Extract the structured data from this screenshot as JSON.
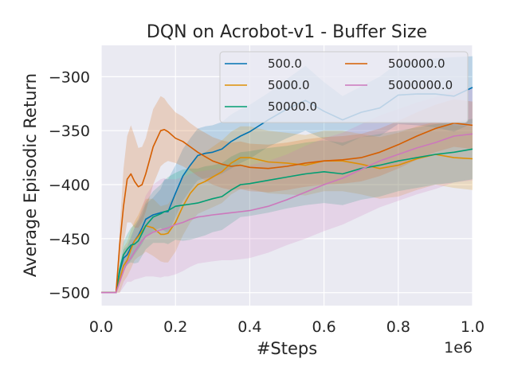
{
  "chart_data": {
    "type": "line",
    "title": "DQN on Acrobot-v1 - Buffer Size",
    "xlabel": "#Steps",
    "ylabel": "Average Episodic Return",
    "x_scale_label": "1e6",
    "xlim": [
      0,
      1000000
    ],
    "ylim": [
      -512,
      -271
    ],
    "x_ticks": [
      0,
      200000,
      400000,
      600000,
      800000,
      1000000
    ],
    "x_tick_labels": [
      "0.0",
      "0.2",
      "0.4",
      "0.6",
      "0.8",
      "1.0"
    ],
    "y_ticks": [
      -500,
      -450,
      -400,
      -350,
      -300
    ],
    "y_tick_labels": [
      "−500",
      "−450",
      "−400",
      "−350",
      "−300"
    ],
    "grid": true,
    "legend_location": "top-right",
    "legend_columns": 2,
    "x": [
      0,
      20000,
      40000,
      50000,
      60000,
      70000,
      80000,
      90000,
      100000,
      110000,
      120000,
      140000,
      160000,
      170000,
      180000,
      200000,
      220000,
      240000,
      260000,
      280000,
      300000,
      325000,
      350000,
      375000,
      400000,
      450000,
      500000,
      550000,
      600000,
      650000,
      700000,
      750000,
      800000,
      850000,
      900000,
      950000,
      1000000
    ],
    "series": [
      {
        "name": "500.0",
        "color": "#0173b2",
        "values": [
          -500,
          -500,
          -500,
          -480,
          -468,
          -465,
          -458,
          -452,
          -447,
          -440,
          -432,
          -428,
          -426,
          -425,
          -425,
          -408,
          -392,
          -382,
          -373,
          -371,
          -370,
          -367,
          -360,
          -355,
          -351,
          -340,
          -330,
          -322,
          -332,
          -340,
          -333,
          -329,
          -317,
          -316,
          -316,
          -318,
          -310
        ],
        "upper": [
          -500,
          -500,
          -500,
          -475,
          -460,
          -457,
          -448,
          -440,
          -434,
          -428,
          -418,
          -412,
          -404,
          -395,
          -395,
          -382,
          -367,
          -357,
          -348,
          -346,
          -345,
          -342,
          -335,
          -330,
          -326,
          -315,
          -302,
          -290,
          -305,
          -318,
          -309,
          -300,
          -287,
          -285,
          -283,
          -282,
          -281
        ],
        "lower": [
          -500,
          -500,
          -500,
          -488,
          -477,
          -475,
          -470,
          -465,
          -460,
          -455,
          -448,
          -443,
          -440,
          -443,
          -445,
          -430,
          -415,
          -405,
          -396,
          -394,
          -393,
          -390,
          -385,
          -380,
          -376,
          -365,
          -357,
          -350,
          -358,
          -364,
          -356,
          -355,
          -344,
          -345,
          -347,
          -351,
          -343
        ]
      },
      {
        "name": "5000.0",
        "color": "#de8f05",
        "values": [
          -500,
          -500,
          -500,
          -488,
          -475,
          -470,
          -460,
          -452,
          -448,
          -443,
          -438,
          -440,
          -446,
          -446,
          -445,
          -435,
          -420,
          -408,
          -400,
          -397,
          -393,
          -388,
          -380,
          -375,
          -375,
          -379,
          -380,
          -382,
          -378,
          -378,
          -381,
          -385,
          -382,
          -376,
          -372,
          -375,
          -376
        ],
        "upper": [
          -500,
          -500,
          -500,
          -475,
          -458,
          -453,
          -442,
          -434,
          -428,
          -420,
          -413,
          -413,
          -420,
          -419,
          -418,
          -408,
          -393,
          -381,
          -373,
          -370,
          -365,
          -359,
          -351,
          -346,
          -346,
          -350,
          -352,
          -354,
          -350,
          -350,
          -353,
          -356,
          -352,
          -346,
          -342,
          -345,
          -346
        ],
        "lower": [
          -500,
          -500,
          -500,
          -500,
          -490,
          -485,
          -478,
          -470,
          -467,
          -465,
          -462,
          -466,
          -471,
          -472,
          -472,
          -462,
          -447,
          -435,
          -427,
          -424,
          -421,
          -417,
          -409,
          -404,
          -404,
          -408,
          -409,
          -410,
          -406,
          -406,
          -409,
          -413,
          -411,
          -405,
          -400,
          -403,
          -405
        ]
      },
      {
        "name": "50000.0",
        "color": "#029e73",
        "values": [
          -500,
          -500,
          -500,
          -478,
          -465,
          -460,
          -456,
          -455,
          -452,
          -445,
          -438,
          -430,
          -427,
          -425,
          -424,
          -420,
          -419,
          -418,
          -417,
          -415,
          -413,
          -411,
          -405,
          -400,
          -399,
          -396,
          -393,
          -390,
          -388,
          -390,
          -385,
          -382,
          -378,
          -375,
          -372,
          -370,
          -367
        ],
        "upper": [
          -500,
          -500,
          -500,
          -470,
          -453,
          -446,
          -440,
          -437,
          -432,
          -424,
          -416,
          -406,
          -400,
          -396,
          -393,
          -389,
          -386,
          -385,
          -385,
          -383,
          -382,
          -380,
          -374,
          -370,
          -369,
          -366,
          -364,
          -361,
          -359,
          -361,
          -356,
          -353,
          -350,
          -347,
          -344,
          -342,
          -339
        ],
        "lower": [
          -500,
          -500,
          -500,
          -490,
          -478,
          -474,
          -472,
          -473,
          -472,
          -466,
          -460,
          -454,
          -454,
          -454,
          -455,
          -451,
          -452,
          -451,
          -449,
          -447,
          -444,
          -442,
          -436,
          -430,
          -429,
          -426,
          -422,
          -419,
          -417,
          -419,
          -414,
          -411,
          -406,
          -403,
          -400,
          -398,
          -395
        ]
      },
      {
        "name": "500000.0",
        "color": "#d55e00",
        "values": [
          -500,
          -500,
          -500,
          -455,
          -420,
          -395,
          -390,
          -397,
          -402,
          -400,
          -390,
          -365,
          -350,
          -349,
          -351,
          -357,
          -360,
          -365,
          -370,
          -374,
          -378,
          -381,
          -383,
          -382,
          -384,
          -385,
          -383,
          -380,
          -378,
          -377,
          -375,
          -370,
          -363,
          -355,
          -348,
          -343,
          -345
        ],
        "upper": [
          -500,
          -500,
          -500,
          -440,
          -385,
          -355,
          -345,
          -355,
          -366,
          -365,
          -357,
          -330,
          -318,
          -320,
          -325,
          -333,
          -337,
          -343,
          -348,
          -352,
          -356,
          -359,
          -361,
          -360,
          -362,
          -363,
          -361,
          -358,
          -356,
          -355,
          -353,
          -348,
          -341,
          -333,
          -326,
          -321,
          -323
        ],
        "lower": [
          -500,
          -500,
          -500,
          -470,
          -455,
          -435,
          -435,
          -440,
          -440,
          -435,
          -425,
          -400,
          -383,
          -380,
          -378,
          -380,
          -383,
          -387,
          -392,
          -396,
          -400,
          -403,
          -405,
          -404,
          -406,
          -407,
          -405,
          -402,
          -400,
          -399,
          -397,
          -392,
          -385,
          -377,
          -370,
          -365,
          -367
        ]
      },
      {
        "name": "5000000.0",
        "color": "#cc78bc",
        "values": [
          -500,
          -500,
          -500,
          -490,
          -480,
          -472,
          -468,
          -462,
          -457,
          -452,
          -448,
          -444,
          -442,
          -441,
          -440,
          -437,
          -435,
          -432,
          -430,
          -429,
          -428,
          -427,
          -426,
          -425,
          -424,
          -420,
          -414,
          -407,
          -400,
          -394,
          -386,
          -378,
          -372,
          -366,
          -361,
          -355,
          -353
        ],
        "upper": [
          -500,
          -500,
          -500,
          -482,
          -468,
          -458,
          -451,
          -440,
          -432,
          -421,
          -410,
          -400,
          -395,
          -394,
          -395,
          -395,
          -393,
          -390,
          -388,
          -387,
          -386,
          -385,
          -384,
          -383,
          -382,
          -378,
          -372,
          -364,
          -357,
          -352,
          -344,
          -336,
          -330,
          -324,
          -319,
          -313,
          -311
        ],
        "lower": [
          -500,
          -500,
          -500,
          -500,
          -495,
          -490,
          -490,
          -488,
          -487,
          -486,
          -485,
          -485,
          -486,
          -485,
          -485,
          -483,
          -480,
          -476,
          -473,
          -472,
          -471,
          -470,
          -470,
          -469,
          -468,
          -463,
          -456,
          -450,
          -443,
          -437,
          -429,
          -421,
          -415,
          -409,
          -404,
          -398,
          -396
        ]
      }
    ]
  }
}
